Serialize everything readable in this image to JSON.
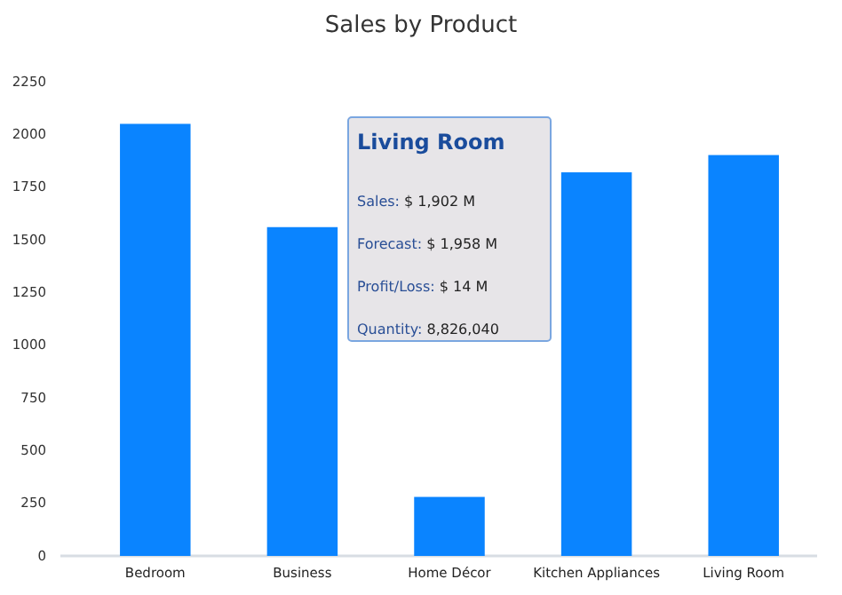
{
  "chart_data": {
    "type": "bar",
    "title": "Sales by Product",
    "categories": [
      "Bedroom",
      "Business",
      "Home Décor",
      "Kitchen Appliances",
      "Living Room"
    ],
    "values": [
      2050,
      1560,
      280,
      1820,
      1902
    ],
    "color": "#0a84ff",
    "ylim": [
      0,
      2250
    ],
    "yticks": [
      0,
      250,
      500,
      750,
      1000,
      1250,
      1500,
      1750,
      2000,
      2250
    ],
    "annotations": [
      "Living Room",
      "Sales: $ 1,902 M",
      "Forecast: $ 1,958 M",
      "Profit/Loss: $ 14 M",
      "Quantity:  8,826,040"
    ]
  }
}
